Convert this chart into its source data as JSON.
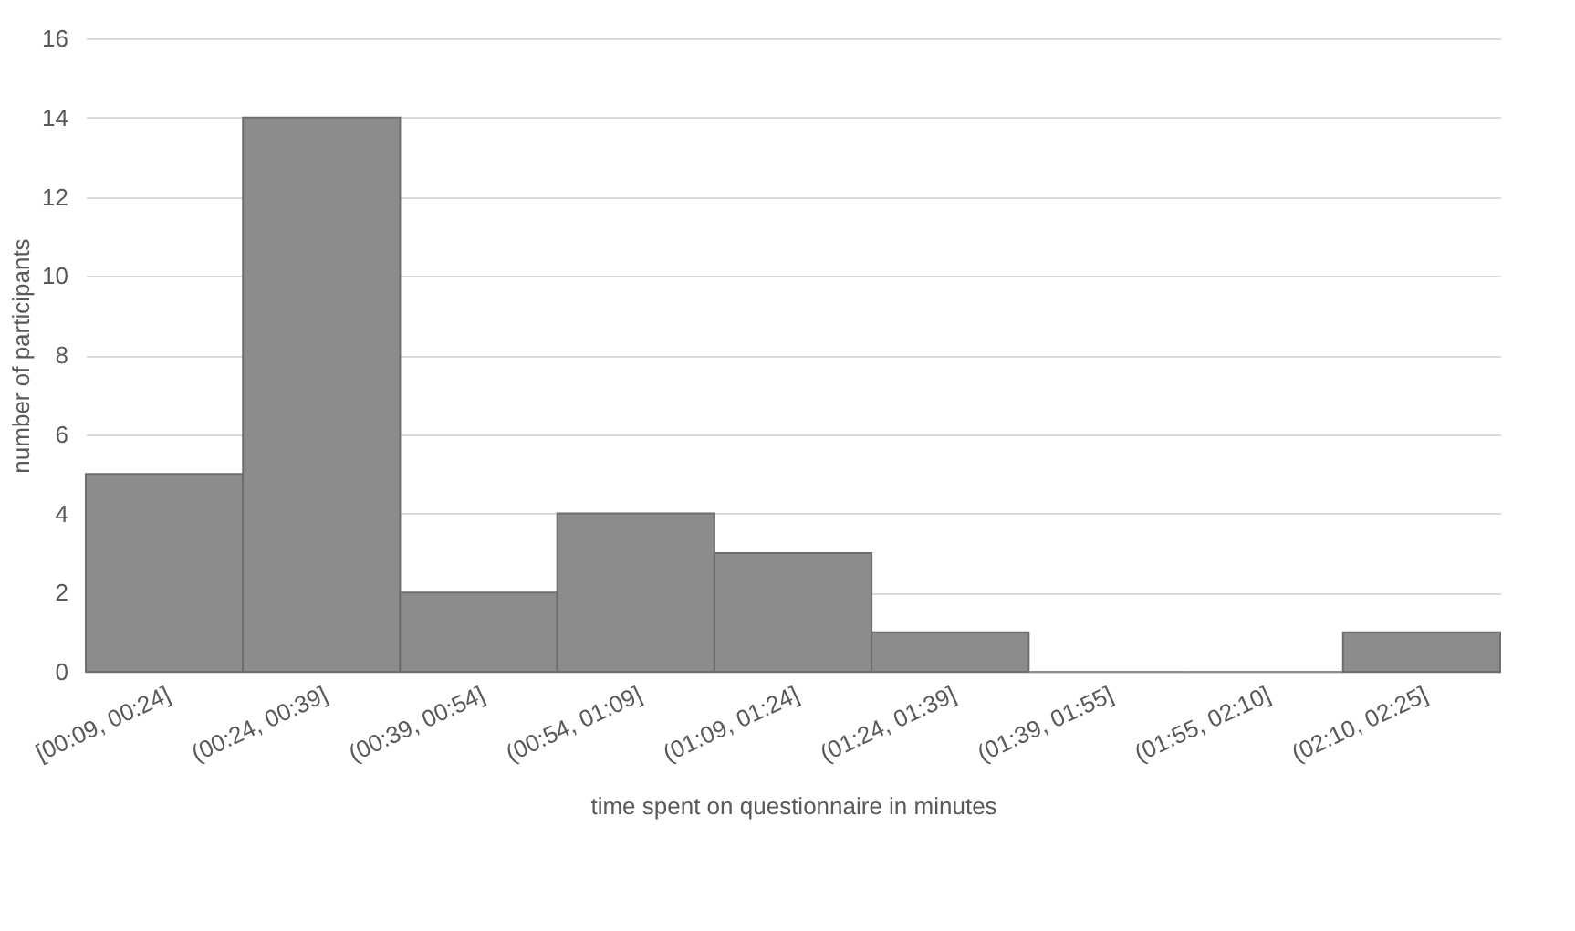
{
  "chart_data": {
    "type": "bar",
    "xlabel": "time spent on questionnaire in minutes",
    "ylabel": "number of participants",
    "categories": [
      "[00:09, 00:24]",
      "(00:24, 00:39]",
      "(00:39, 00:54]",
      "(00:54, 01:09]",
      "(01:09, 01:24]",
      "(01:24, 01:39]",
      "(01:39, 01:55]",
      "(01:55, 02:10]",
      "(02:10, 02:25]"
    ],
    "values": [
      5,
      14,
      2,
      4,
      3,
      1,
      0,
      0,
      1
    ],
    "color": "#8c8c8c",
    "ylim": [
      0,
      16
    ],
    "yticks": [
      0,
      2,
      4,
      6,
      8,
      10,
      12,
      14,
      16
    ],
    "grid": "y"
  }
}
